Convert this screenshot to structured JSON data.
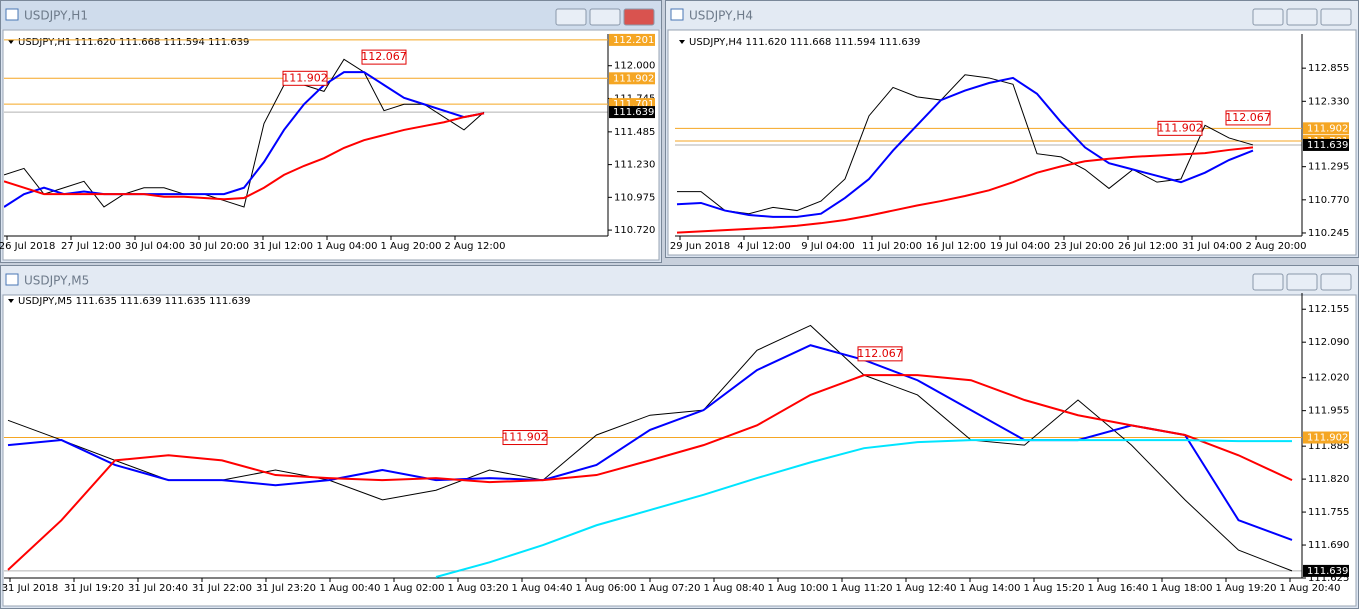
{
  "windows": [
    {
      "title": "USDJPY,H1",
      "chart": {
        "type": "line",
        "header": "USDJPY,H1  111.620 111.668 111.594 111.639",
        "ylim": [
          110.674,
          112.247
        ],
        "yticks": [
          {
            "value": 112,
            "label": "112.000"
          },
          111.745,
          111.485,
          {
            "value": 111.23,
            "label": "111.230"
          },
          110.975,
          {
            "value": 110.72,
            "label": "110.720"
          }
        ],
        "xlabels": [
          "26 Jul 2018",
          "27 Jul 12:00",
          "30 Jul 04:00",
          "30 Jul 20:00",
          "31 Jul 12:00",
          "1 Aug 04:00",
          "1 Aug 20:00",
          "2 Aug 12:00"
        ],
        "series": [
          {
            "color": "#000000",
            "values": [
              111.15,
              111.2,
              111.0,
              111.05,
              111.1,
              110.9,
              111.0,
              111.05,
              111.05,
              111.0,
              111.0,
              110.95,
              110.9,
              111.55,
              111.85,
              111.85,
              111.8,
              112.05,
              111.95,
              111.65,
              111.7,
              111.7,
              111.6,
              111.5,
              111.639
            ]
          },
          {
            "color": "#0000ff",
            "values": [
              110.9,
              111.0,
              111.05,
              111.0,
              111.02,
              111.0,
              111.0,
              111.0,
              111.0,
              111.0,
              111.0,
              111.0,
              111.05,
              111.25,
              111.5,
              111.7,
              111.85,
              111.95,
              111.95,
              111.85,
              111.75,
              111.7,
              111.65,
              111.6,
              111.63
            ]
          },
          {
            "color": "#ff0000",
            "values": [
              111.1,
              111.05,
              111.0,
              111.0,
              111.0,
              111.0,
              111.0,
              111.0,
              110.98,
              110.98,
              110.97,
              110.96,
              110.97,
              111.05,
              111.15,
              111.22,
              111.28,
              111.36,
              111.42,
              111.46,
              111.5,
              111.53,
              111.56,
              111.6,
              111.63
            ]
          }
        ],
        "levels": [
          {
            "value": 112.201,
            "color": "#f5a623"
          },
          {
            "value": 111.902,
            "color": "#f5a623"
          },
          {
            "value": 111.701,
            "color": "#f5a623"
          },
          {
            "value": 111.639,
            "color": "#000000"
          }
        ],
        "annotations": [
          112.067,
          111.902
        ]
      }
    },
    {
      "title": "USDJPY,H4",
      "chart": {
        "type": "line",
        "header": "USDJPY,H4  111.620 111.668 111.594 111.639",
        "ylim": [
          110.197,
          113.396
        ],
        "yticks": [
          112.855,
          {
            "value": 112.33,
            "label": "112.330"
          },
          111.295,
          {
            "value": 110.77,
            "label": "110.770"
          },
          110.245
        ],
        "xlabels": [
          "29 Jun 2018",
          "4 Jul 12:00",
          "9 Jul 04:00",
          "11 Jul 20:00",
          "16 Jul 12:00",
          "19 Jul 04:00",
          "23 Jul 20:00",
          "26 Jul 12:00",
          "31 Jul 04:00",
          "2 Aug 20:00"
        ],
        "series": [
          {
            "color": "#000000",
            "values": [
              110.9,
              110.9,
              110.6,
              110.55,
              110.65,
              110.6,
              110.75,
              111.1,
              112.1,
              112.55,
              112.4,
              112.35,
              112.75,
              112.7,
              112.6,
              111.5,
              111.45,
              111.25,
              110.95,
              111.25,
              111.05,
              111.1,
              111.95,
              111.75,
              111.639
            ]
          },
          {
            "color": "#0000ff",
            "values": [
              110.7,
              110.72,
              110.6,
              110.53,
              110.5,
              110.5,
              110.55,
              110.8,
              111.1,
              111.55,
              111.95,
              112.35,
              112.5,
              112.62,
              112.7,
              112.45,
              112.0,
              111.6,
              111.35,
              111.25,
              111.15,
              111.05,
              111.2,
              111.4,
              111.55
            ]
          },
          {
            "color": "#ff0000",
            "values": [
              110.25,
              110.27,
              110.29,
              110.31,
              110.33,
              110.36,
              110.4,
              110.45,
              110.52,
              110.6,
              110.68,
              110.75,
              110.83,
              110.92,
              111.05,
              111.2,
              111.3,
              111.38,
              111.42,
              111.45,
              111.47,
              111.49,
              111.51,
              111.56,
              111.6
            ]
          }
        ],
        "levels": [
          {
            "value": 111.902,
            "color": "#f5a623"
          },
          {
            "value": 111.701,
            "color": "#f5a623"
          },
          {
            "value": 111.639,
            "color": "#000000"
          }
        ],
        "annotations": [
          112.067,
          111.902
        ]
      }
    },
    {
      "title": "USDJPY,M5",
      "chart": {
        "type": "line",
        "header": "USDJPY,M5  111.635 111.639 111.635 111.639",
        "ylim": [
          111.625,
          112.187
        ],
        "yticks": [
          112.155,
          {
            "value": 112.09,
            "label": "112.090"
          },
          {
            "value": 112.02,
            "label": "112.020"
          },
          111.955,
          111.885,
          {
            "value": 111.82,
            "label": "111.820"
          },
          111.755,
          {
            "value": 111.69,
            "label": "111.690"
          },
          111.625
        ],
        "xlabels": [
          "31 Jul 2018",
          "31 Jul 19:20",
          "31 Jul 20:40",
          "31 Jul 22:00",
          "31 Jul 23:20",
          "1 Aug 00:40",
          "1 Aug 02:00",
          "1 Aug 03:20",
          "1 Aug 04:40",
          "1 Aug 06:00",
          "1 Aug 07:20",
          "1 Aug 08:40",
          "1 Aug 10:00",
          "1 Aug 11:20",
          "1 Aug 12:40",
          "1 Aug 14:00",
          "1 Aug 15:20",
          "1 Aug 16:40",
          "1 Aug 18:00",
          "1 Aug 19:20",
          "1 Aug 20:40"
        ],
        "series": [
          {
            "color": "#000000",
            "values": [
              111.936,
              111.897,
              111.857,
              111.818,
              111.818,
              111.838,
              111.818,
              111.779,
              111.798,
              111.838,
              111.818,
              111.907,
              111.946,
              111.956,
              112.074,
              112.123,
              112.025,
              111.986,
              111.897,
              111.887,
              111.976,
              111.887,
              111.779,
              111.68,
              111.639
            ]
          },
          {
            "color": "#0000ff",
            "values": [
              111.887,
              111.897,
              111.848,
              111.818,
              111.818,
              111.808,
              111.818,
              111.838,
              111.818,
              111.822,
              111.818,
              111.848,
              111.917,
              111.956,
              112.035,
              112.084,
              112.055,
              112.015,
              111.956,
              111.897,
              111.897,
              111.926,
              111.907,
              111.739,
              111.7
            ]
          },
          {
            "color": "#ff0000",
            "values": [
              111.641,
              111.739,
              111.857,
              111.867,
              111.857,
              111.828,
              111.822,
              111.818,
              111.822,
              111.814,
              111.818,
              111.828,
              111.857,
              111.887,
              111.926,
              111.986,
              112.025,
              112.025,
              112.015,
              111.976,
              111.946,
              111.926,
              111.907,
              111.867,
              111.818
            ]
          },
          {
            "color": "#00e5ff",
            "values": [
              null,
              null,
              null,
              null,
              null,
              null,
              null,
              null,
              111.627,
              111.656,
              111.69,
              111.729,
              111.759,
              111.789,
              111.822,
              111.853,
              111.881,
              111.893,
              111.897,
              111.897,
              111.897,
              111.897,
              111.897,
              111.895,
              111.895
            ]
          }
        ],
        "levels": [
          {
            "value": 111.902,
            "color": "#f5a623"
          },
          {
            "value": 111.639,
            "color": "#000000"
          }
        ],
        "annotations": [
          112.067,
          111.902
        ]
      }
    }
  ]
}
